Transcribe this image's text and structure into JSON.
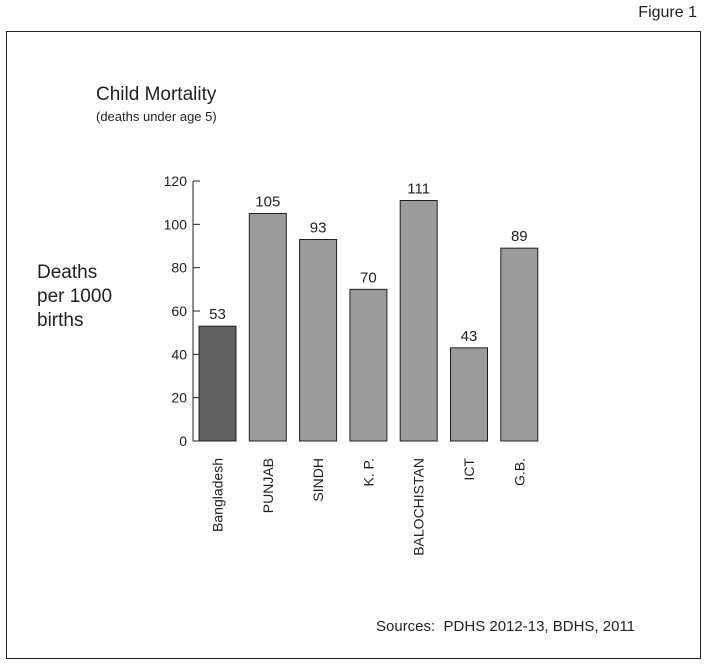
{
  "figure_label": "Figure 1",
  "sources": "Sources:  PDHS 2012-13, BDHS, 2011",
  "colors": {
    "highlight_bar": "#5f6062",
    "bar": "#9a9b9d",
    "axis": "#231f20"
  },
  "chart_data": {
    "type": "bar",
    "title": "Child Mortality",
    "subtitle": "(deaths under age 5)",
    "ylabel_lines": [
      "Deaths",
      "per 1000",
      "births"
    ],
    "xlabel": "",
    "categories": [
      "Bangladesh",
      "PUNJAB",
      "SINDH",
      "K. P.",
      "BALOCHISTAN",
      "ICT",
      "G.B."
    ],
    "values": [
      53,
      105,
      93,
      70,
      111,
      43,
      89
    ],
    "data_labels": [
      "53",
      "105",
      "93",
      "70",
      "111",
      "43",
      "89"
    ],
    "highlight_index": 0,
    "ylim": [
      0,
      120
    ],
    "yticks": [
      0,
      20,
      40,
      60,
      80,
      100,
      120
    ],
    "grid": false,
    "legend": "none"
  }
}
